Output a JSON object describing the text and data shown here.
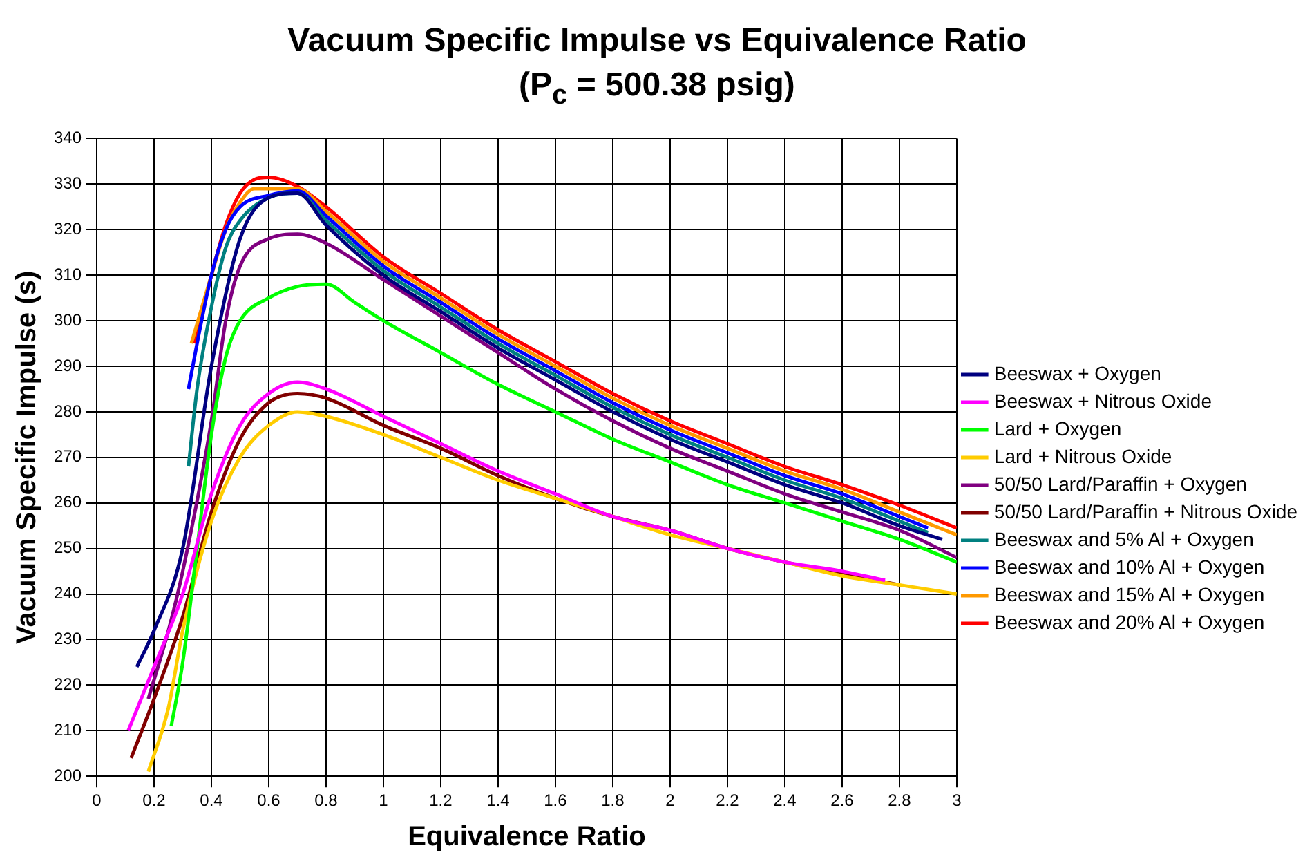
{
  "chart_data": {
    "type": "line",
    "title": "Vacuum Specific Impulse vs Equivalence Ratio",
    "subtitle": "(P$_{c}$ = 500.38 psig)",
    "xlabel": "Equivalence Ratio",
    "ylabel": "Vacuum Specific Impulse (s)",
    "xlim": [
      0,
      3
    ],
    "xticks": [
      0,
      0.2,
      0.4,
      0.6,
      0.8,
      1,
      1.2,
      1.4,
      1.6,
      1.8,
      2,
      2.2,
      2.4,
      2.6,
      2.8,
      3
    ],
    "ylim": [
      200,
      340
    ],
    "yticks": [
      200,
      210,
      220,
      230,
      240,
      250,
      260,
      270,
      280,
      290,
      300,
      310,
      320,
      330,
      340
    ],
    "grid": true,
    "legend": "right",
    "marker": "none",
    "line_style": "solid",
    "series": [
      {
        "name": "Beeswax + Oxygen",
        "color": "#000080",
        "x": [
          0.14,
          0.2,
          0.3,
          0.4,
          0.5,
          0.6,
          0.7,
          0.8,
          1,
          1.2,
          1.4,
          1.6,
          1.8,
          2,
          2.2,
          2.4,
          2.6,
          2.8,
          2.95
        ],
        "values": [
          224,
          232,
          250,
          290,
          318,
          327,
          328,
          321,
          310,
          302,
          294,
          287,
          280,
          274,
          269,
          264,
          260,
          255,
          252
        ]
      },
      {
        "name": "Beeswax + Nitrous Oxide",
        "color": "#ff00ff",
        "x": [
          0.11,
          0.2,
          0.3,
          0.4,
          0.5,
          0.6,
          0.7,
          0.8,
          1,
          1.2,
          1.4,
          1.6,
          1.8,
          2,
          2.2,
          2.4,
          2.6,
          2.75
        ],
        "values": [
          210,
          224,
          240,
          262,
          277,
          284,
          286.5,
          285,
          279,
          273,
          267,
          262,
          257,
          254,
          250,
          247,
          245,
          243
        ]
      },
      {
        "name": "Lard + Oxygen",
        "color": "#00ff00",
        "x": [
          0.26,
          0.3,
          0.35,
          0.4,
          0.45,
          0.5,
          0.6,
          0.7,
          0.8,
          0.9,
          1,
          1.2,
          1.4,
          1.6,
          1.8,
          2,
          2.2,
          2.4,
          2.6,
          2.8,
          3
        ],
        "values": [
          211,
          225,
          250,
          275,
          292,
          300,
          305,
          307.5,
          308,
          304,
          300,
          293,
          286,
          280,
          274,
          269,
          264,
          260,
          256,
          252,
          247
        ]
      },
      {
        "name": "Lard + Nitrous Oxide",
        "color": "#ffcc00",
        "x": [
          0.18,
          0.25,
          0.3,
          0.4,
          0.5,
          0.6,
          0.7,
          0.8,
          1,
          1.2,
          1.4,
          1.6,
          1.8,
          2,
          2.2,
          2.4,
          2.6,
          2.8,
          3
        ],
        "values": [
          201,
          215,
          232,
          256,
          270,
          277,
          280,
          279,
          275,
          270,
          265,
          261,
          257,
          253,
          250,
          247,
          244,
          242,
          240
        ]
      },
      {
        "name": "50/50 Lard/Paraffin + Oxygen",
        "color": "#800080",
        "x": [
          0.18,
          0.25,
          0.3,
          0.4,
          0.45,
          0.5,
          0.6,
          0.7,
          0.8,
          1,
          1.2,
          1.4,
          1.6,
          1.8,
          2,
          2.2,
          2.4,
          2.6,
          2.8,
          3
        ],
        "values": [
          217,
          232,
          245,
          278,
          300,
          312,
          318,
          319,
          317,
          309,
          301,
          293,
          285,
          278,
          272,
          267,
          262,
          258,
          254,
          248
        ]
      },
      {
        "name": "50/50 Lard/Paraffin + Nitrous Oxide",
        "color": "#800000",
        "x": [
          0.12,
          0.2,
          0.3,
          0.4,
          0.5,
          0.6,
          0.7,
          0.8,
          1,
          1.2,
          1.4,
          1.6,
          1.8,
          2,
          2.2,
          2.4,
          2.6,
          2.8
        ],
        "values": [
          204,
          217,
          235,
          258,
          274,
          282,
          284,
          283,
          277,
          272,
          266,
          261,
          257,
          254,
          250,
          247,
          244.5,
          242
        ]
      },
      {
        "name": "Beeswax and 5% Al + Oxygen",
        "color": "#008080",
        "x": [
          0.32,
          0.35,
          0.4,
          0.45,
          0.5,
          0.6,
          0.7,
          0.8,
          1,
          1.2,
          1.4,
          1.6,
          1.8,
          2,
          2.2,
          2.4,
          2.6,
          2.8,
          2.9
        ],
        "values": [
          268,
          285,
          303,
          316,
          322,
          327,
          328,
          322,
          311,
          303,
          295,
          288,
          281,
          275,
          270,
          265,
          261,
          256,
          253.5
        ]
      },
      {
        "name": "Beeswax and 10% Al + Oxygen",
        "color": "#0000ff",
        "x": [
          0.32,
          0.35,
          0.4,
          0.45,
          0.5,
          0.6,
          0.7,
          0.8,
          1,
          1.2,
          1.4,
          1.6,
          1.8,
          2,
          2.2,
          2.4,
          2.6,
          2.8,
          2.9
        ],
        "values": [
          285,
          295,
          310,
          320,
          325,
          327.5,
          328.5,
          323,
          312,
          304,
          296,
          289,
          282,
          276,
          271,
          266,
          262,
          257,
          254.5
        ]
      },
      {
        "name": "Beeswax and 15% Al + Oxygen",
        "color": "#ff9900",
        "x": [
          0.33,
          0.4,
          0.45,
          0.5,
          0.55,
          0.6,
          0.7,
          0.8,
          1,
          1.2,
          1.4,
          1.6,
          1.8,
          2,
          2.2,
          2.4,
          2.6,
          2.8,
          3
        ],
        "values": [
          295,
          310,
          320,
          326,
          329,
          329,
          329,
          324,
          313,
          305,
          297,
          290,
          283,
          277,
          272,
          267,
          263,
          258,
          253
        ]
      },
      {
        "name": "Beeswax and 20% Al + Oxygen",
        "color": "#ff0000",
        "x": [
          0.34,
          0.4,
          0.45,
          0.5,
          0.55,
          0.6,
          0.7,
          0.8,
          1,
          1.2,
          1.4,
          1.6,
          1.8,
          2,
          2.2,
          2.4,
          2.6,
          2.8,
          3
        ],
        "values": [
          295,
          310,
          321,
          328,
          331,
          331.5,
          329.5,
          325,
          314,
          306,
          298,
          291,
          284,
          278,
          273,
          268,
          264,
          259.5,
          254.5
        ]
      }
    ]
  }
}
